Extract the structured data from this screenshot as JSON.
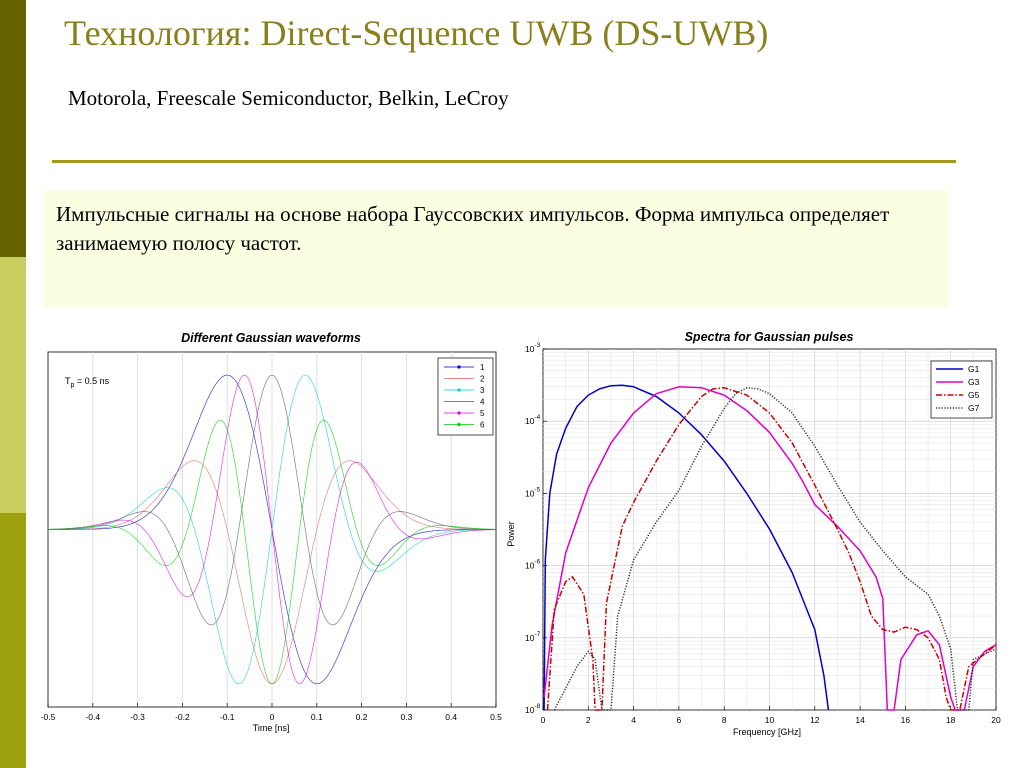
{
  "slide": {
    "title": "Технология: Direct-Sequence UWB (DS-UWB)",
    "subtitle": "Motorola, Freescale Semiconductor, Belkin, LeCroy",
    "body": "Импульсные сигналы на основе набора Гауссовских импульсов. Форма импульса определяет занимаемую полосу частот.",
    "colors": {
      "title": "#8a7f1e",
      "rule": "#a39a26",
      "note_bg": "#fbfee0",
      "sidebar_dark": "#636300",
      "sidebar_mid": "#c9cc5e",
      "sidebar_olive": "#9da00d"
    }
  },
  "chart_data": [
    {
      "type": "line",
      "title": "Different Gaussian waveforms",
      "xlabel": "Time [ns]",
      "ylabel": "",
      "xlim": [
        -0.5,
        0.5
      ],
      "ylim": [
        -1.15,
        1.15
      ],
      "xticks": [
        "-0.5",
        "-0.4",
        "-0.3",
        "-0.2",
        "-0.1",
        "0",
        "0.1",
        "0.2",
        "0.3",
        "0.4",
        "0.5"
      ],
      "annotation": {
        "main": "T",
        "sub": "p",
        "rest": " = 0.5 ns"
      },
      "grid": "vertical",
      "legend_position": "top-right",
      "series": [
        {
          "name": "1",
          "color": "#0000cc",
          "marker": "dot"
        },
        {
          "name": "2",
          "color": "#e06060",
          "marker": "none"
        },
        {
          "name": "3",
          "color": "#00cccc",
          "marker": "dot"
        },
        {
          "name": "4",
          "color": "#555555",
          "marker": "none"
        },
        {
          "name": "5",
          "color": "#e000e0",
          "marker": "dot"
        },
        {
          "name": "6",
          "color": "#00cc00",
          "marker": "dot"
        }
      ],
      "waveform": {
        "pulse_width_ns": 0.5,
        "derivative_orders": [
          1,
          2,
          3,
          4,
          5,
          6
        ]
      }
    },
    {
      "type": "line",
      "title": "Spectra for Gaussian pulses",
      "xlabel": "Frequency [GHz]",
      "ylabel": "Power",
      "xlim": [
        0,
        20
      ],
      "ylim": [
        1e-08,
        0.001
      ],
      "yscale": "log",
      "xticks": [
        "0",
        "2",
        "4",
        "6",
        "8",
        "10",
        "12",
        "14",
        "16",
        "18",
        "20"
      ],
      "yticks": [
        {
          "base": "10",
          "exp": "-3"
        },
        {
          "base": "10",
          "exp": "-4"
        },
        {
          "base": "10",
          "exp": "-5"
        },
        {
          "base": "10",
          "exp": "-6"
        },
        {
          "base": "10",
          "exp": "-7"
        },
        {
          "base": "10",
          "exp": "-8"
        }
      ],
      "grid": "on",
      "legend_position": "top-right",
      "series": [
        {
          "name": "G1",
          "color": "#0000cc",
          "style": "solid",
          "points": [
            [
              0.05,
              1e-08
            ],
            [
              0.1,
              1.2e-06
            ],
            [
              0.3,
              1e-05
            ],
            [
              0.6,
              3.5e-05
            ],
            [
              1,
              8e-05
            ],
            [
              1.5,
              0.00016
            ],
            [
              2,
              0.00023
            ],
            [
              2.5,
              0.00028
            ],
            [
              3,
              0.00031
            ],
            [
              3.5,
              0.000315
            ],
            [
              4,
              0.0003
            ],
            [
              5,
              0.00022
            ],
            [
              6,
              0.00013
            ],
            [
              7,
              6.5e-05
            ],
            [
              8,
              2.8e-05
            ],
            [
              9,
              1e-05
            ],
            [
              10,
              3.2e-06
            ],
            [
              11,
              8e-07
            ],
            [
              12,
              1.3e-07
            ],
            [
              12.4,
              3e-08
            ],
            [
              12.6,
              1e-08
            ]
          ]
        },
        {
          "name": "G3",
          "color": "#e000c8",
          "style": "solid",
          "points": [
            [
              0.05,
              1.5e-08
            ],
            [
              0.4,
              1.5e-07
            ],
            [
              1,
              1.5e-06
            ],
            [
              2,
              1.2e-05
            ],
            [
              3,
              5e-05
            ],
            [
              4,
              0.00013
            ],
            [
              5,
              0.00024
            ],
            [
              6,
              0.0003
            ],
            [
              7,
              0.00029
            ],
            [
              8,
              0.00023
            ],
            [
              9,
              0.00014
            ],
            [
              10,
              7e-05
            ],
            [
              11,
              2.6e-05
            ],
            [
              11.5,
              1.4e-05
            ],
            [
              12,
              7e-06
            ],
            [
              13,
              3.5e-06
            ],
            [
              14,
              1.6e-06
            ],
            [
              14.7,
              7e-07
            ],
            [
              15,
              3.5e-07
            ],
            [
              15.2,
              1e-08
            ],
            [
              15.5,
              1e-08
            ],
            [
              15.8,
              5e-08
            ],
            [
              16.5,
              1.1e-07
            ],
            [
              17,
              1.25e-07
            ],
            [
              17.5,
              8e-08
            ],
            [
              18,
              1.5e-08
            ],
            [
              18.2,
              1e-08
            ],
            [
              18.6,
              1e-08
            ],
            [
              19,
              4e-08
            ],
            [
              19.5,
              6.5e-08
            ],
            [
              20,
              8e-08
            ]
          ]
        },
        {
          "name": "G5",
          "color": "#cc0000",
          "style": "dashdot",
          "points": [
            [
              0.2,
              1e-08
            ],
            [
              0.5,
              2.5e-07
            ],
            [
              1,
              6e-07
            ],
            [
              1.3,
              7e-07
            ],
            [
              1.8,
              4e-07
            ],
            [
              2.2,
              5e-08
            ],
            [
              2.3,
              1e-08
            ],
            [
              2.6,
              1e-08
            ],
            [
              2.8,
              3e-07
            ],
            [
              3.5,
              3.5e-06
            ],
            [
              4,
              7.5e-06
            ],
            [
              5,
              2.8e-05
            ],
            [
              6,
              9e-05
            ],
            [
              7,
              0.00022
            ],
            [
              7.5,
              0.00028
            ],
            [
              8,
              0.00029
            ],
            [
              9,
              0.00023
            ],
            [
              10,
              0.00013
            ],
            [
              11,
              5e-05
            ],
            [
              12,
              1.3e-05
            ],
            [
              13,
              3.2e-06
            ],
            [
              13.5,
              1.5e-06
            ],
            [
              14,
              6e-07
            ],
            [
              14.5,
              2e-07
            ],
            [
              15,
              1.3e-07
            ],
            [
              15.5,
              1.2e-07
            ],
            [
              16,
              1.4e-07
            ],
            [
              16.5,
              1.3e-07
            ],
            [
              17,
              1e-07
            ],
            [
              17.5,
              5e-08
            ],
            [
              17.8,
              1.5e-08
            ],
            [
              18,
              1e-08
            ],
            [
              18.4,
              1e-08
            ],
            [
              18.8,
              4e-08
            ],
            [
              19.5,
              6e-08
            ],
            [
              20,
              8e-08
            ]
          ]
        },
        {
          "name": "G7",
          "color": "#333333",
          "style": "dotted",
          "points": [
            [
              0.5,
              1e-08
            ],
            [
              1,
              2e-08
            ],
            [
              1.5,
              4e-08
            ],
            [
              2,
              6.5e-08
            ],
            [
              2.3,
              5e-08
            ],
            [
              2.6,
              1e-08
            ],
            [
              3,
              1e-08
            ],
            [
              3.3,
              2e-07
            ],
            [
              4,
              1.2e-06
            ],
            [
              5,
              4e-06
            ],
            [
              6,
              1.1e-05
            ],
            [
              7,
              4.5e-05
            ],
            [
              8,
              0.00015
            ],
            [
              8.5,
              0.00024
            ],
            [
              9,
              0.00029
            ],
            [
              9.5,
              0.00028
            ],
            [
              10,
              0.00024
            ],
            [
              11,
              0.00013
            ],
            [
              12,
              4.5e-05
            ],
            [
              13,
              1.3e-05
            ],
            [
              14,
              4e-06
            ],
            [
              15,
              1.6e-06
            ],
            [
              16,
              7e-07
            ],
            [
              17,
              4e-07
            ],
            [
              17.5,
              2e-07
            ],
            [
              18,
              7e-08
            ],
            [
              18.3,
              1e-08
            ],
            [
              18.8,
              1e-08
            ],
            [
              19,
              5e-08
            ],
            [
              20,
              7e-08
            ]
          ]
        }
      ]
    }
  ]
}
